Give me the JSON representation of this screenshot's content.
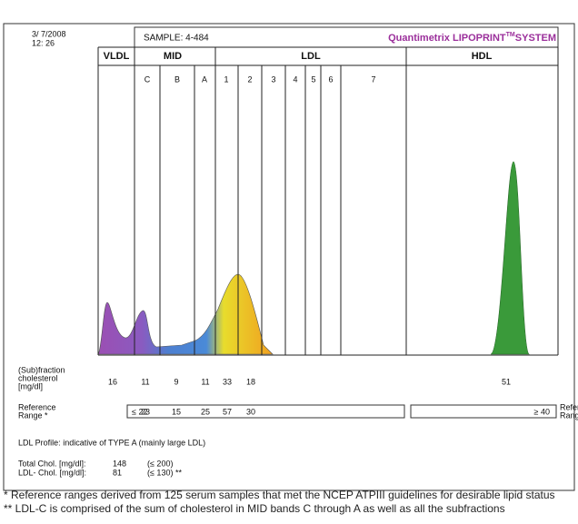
{
  "header": {
    "date": "3/ 7/2008",
    "time": "12: 26",
    "sample": "SAMPLE:  4-484",
    "brand": "Quantimetrix LIPOPRINT",
    "brand_sup": "TM",
    "brand_end": "SYSTEM"
  },
  "bands": [
    "VLDL",
    "MID",
    "LDL",
    "HDL"
  ],
  "subbands": [
    "C",
    "B",
    "A",
    "1",
    "2",
    "3",
    "4",
    "5",
    "6",
    "7"
  ],
  "fraction_label": [
    "(Sub)fraction",
    "cholesterol",
    "[mg/dl]"
  ],
  "fraction_values": [
    "16",
    "11",
    "9",
    "11",
    "33",
    "18",
    "51"
  ],
  "reference_label": [
    "Reference",
    "Range *"
  ],
  "reference_values": [
    "≤ 22",
    "23",
    "15",
    "25",
    "57",
    "30",
    "≥ 40"
  ],
  "profile": "LDL Profile:  indicative of TYPE A  (mainly large LDL)",
  "totals": [
    {
      "label": "Total Chol. [mg/dl]:",
      "value": "148",
      "ref": "(≤ 200)"
    },
    {
      "label": "LDL- Chol. [mg/dl]:",
      "value": "81",
      "ref": "(≤ 130) **"
    }
  ],
  "footnotes": [
    "* Reference ranges derived from 125 serum samples that met the NCEP ATPIII guidelines for desirable lipid status",
    "** LDL-C is comprised of the sum of cholesterol in MID bands C through A as well as all the subfractions"
  ]
}
